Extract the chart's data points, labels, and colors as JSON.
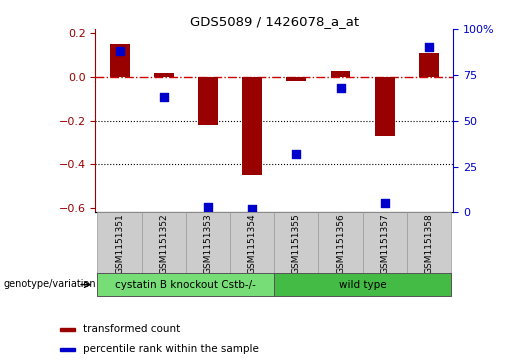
{
  "title": "GDS5089 / 1426078_a_at",
  "samples": [
    "GSM1151351",
    "GSM1151352",
    "GSM1151353",
    "GSM1151354",
    "GSM1151355",
    "GSM1151356",
    "GSM1151357",
    "GSM1151358"
  ],
  "red_bars": [
    0.15,
    0.02,
    -0.22,
    -0.45,
    -0.02,
    0.03,
    -0.27,
    0.11
  ],
  "blue_dots": [
    88,
    63,
    3,
    2,
    32,
    68,
    5,
    90
  ],
  "ylim_left": [
    -0.62,
    0.22
  ],
  "ylim_right": [
    0,
    100
  ],
  "yticks_left": [
    0.2,
    0.0,
    -0.2,
    -0.4,
    -0.6
  ],
  "yticks_right": [
    100,
    75,
    50,
    25,
    0
  ],
  "group1_label": "cystatin B knockout Cstb-/-",
  "group1_count": 4,
  "group2_label": "wild type",
  "group2_count": 4,
  "legend_red": "transformed count",
  "legend_blue": "percentile rank within the sample",
  "genotype_label": "genotype/variation",
  "bar_color": "#990000",
  "dot_color": "#0000cc",
  "group1_color": "#77dd77",
  "group2_color": "#44bb44",
  "hline_color": "#cc0000",
  "dotgrid_color": "#000000",
  "gray_box_color": "#cccccc",
  "gray_box_edge": "#999999",
  "bar_width": 0.45,
  "dot_size": 28
}
